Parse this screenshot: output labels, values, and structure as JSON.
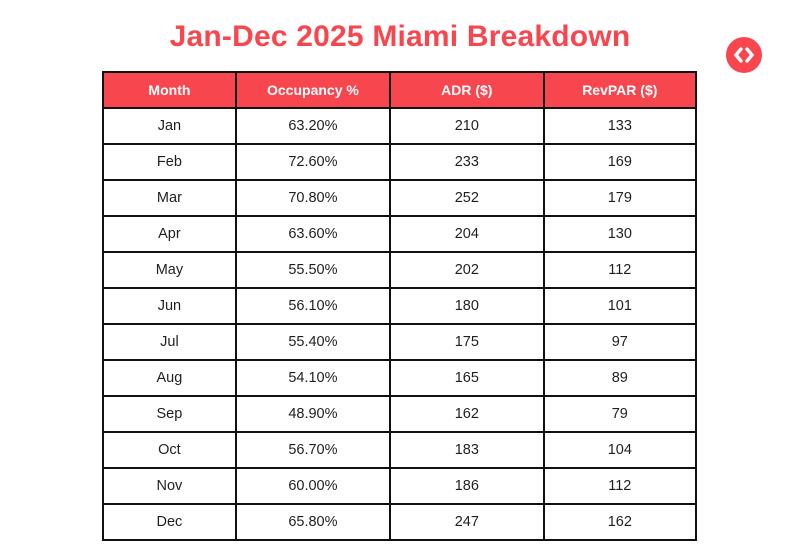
{
  "page": {
    "title": "Jan-Dec 2025 Miami Breakdown"
  },
  "colors": {
    "accent_red": "#F8464F",
    "header_text": "#FFFFFF",
    "border": "#111111",
    "body_text": "#1F1F1F",
    "background": "#FFFFFF"
  },
  "badge": {
    "icon": "code-brackets-icon"
  },
  "table": {
    "columns": [
      "Month",
      "Occupancy %",
      "ADR ($)",
      "RevPAR ($)"
    ],
    "rows": [
      [
        "Jan",
        "63.20%",
        "210",
        "133"
      ],
      [
        "Feb",
        "72.60%",
        "233",
        "169"
      ],
      [
        "Mar",
        "70.80%",
        "252",
        "179"
      ],
      [
        "Apr",
        "63.60%",
        "204",
        "130"
      ],
      [
        "May",
        "55.50%",
        "202",
        "112"
      ],
      [
        "Jun",
        "56.10%",
        "180",
        "101"
      ],
      [
        "Jul",
        "55.40%",
        "175",
        "97"
      ],
      [
        "Aug",
        "54.10%",
        "165",
        "89"
      ],
      [
        "Sep",
        "48.90%",
        "162",
        "79"
      ],
      [
        "Oct",
        "56.70%",
        "183",
        "104"
      ],
      [
        "Nov",
        "60.00%",
        "186",
        "112"
      ],
      [
        "Dec",
        "65.80%",
        "247",
        "162"
      ]
    ]
  },
  "chart_data": {
    "type": "table",
    "title": "Jan-Dec 2025 Miami Breakdown",
    "categories": [
      "Jan",
      "Feb",
      "Mar",
      "Apr",
      "May",
      "Jun",
      "Jul",
      "Aug",
      "Sep",
      "Oct",
      "Nov",
      "Dec"
    ],
    "series": [
      {
        "name": "Occupancy %",
        "values": [
          63.2,
          72.6,
          70.8,
          63.6,
          55.5,
          56.1,
          55.4,
          54.1,
          48.9,
          56.7,
          60.0,
          65.8
        ]
      },
      {
        "name": "ADR ($)",
        "values": [
          210,
          233,
          252,
          204,
          202,
          180,
          175,
          165,
          162,
          183,
          186,
          247
        ]
      },
      {
        "name": "RevPAR ($)",
        "values": [
          133,
          169,
          179,
          130,
          112,
          101,
          97,
          89,
          79,
          104,
          112,
          162
        ]
      }
    ]
  }
}
